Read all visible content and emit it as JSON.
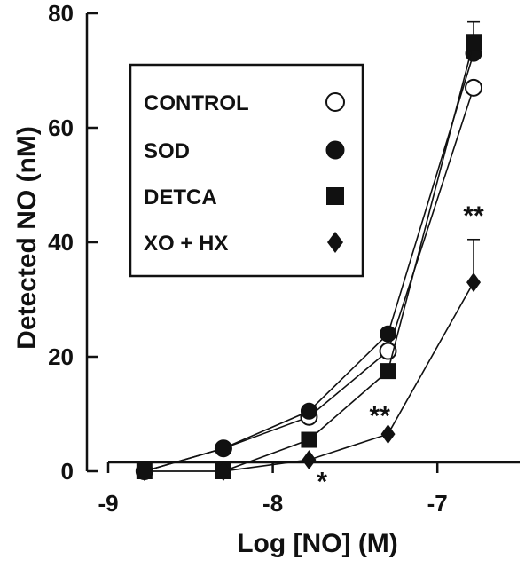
{
  "chart_data": {
    "type": "line",
    "xlabel": "Log [NO] (M)",
    "ylabel": "Detected NO (nM)",
    "xlim": [
      -9,
      -6.5
    ],
    "ylim": [
      0,
      80
    ],
    "x_ticks": [
      -9,
      -8,
      -7
    ],
    "x_tick_labels": [
      "-9",
      "-8",
      "-7"
    ],
    "y_ticks": [
      0,
      20,
      40,
      60,
      80
    ],
    "y_tick_labels": [
      "0",
      "20",
      "40",
      "60",
      "80"
    ],
    "grid": false,
    "legend_position": "upper-left",
    "series": [
      {
        "name": "CONTROL",
        "marker": "open-circle",
        "x": [
          -8.78,
          -8.3,
          -7.78,
          -7.3,
          -6.78
        ],
        "y": [
          0,
          4,
          9.5,
          21,
          67
        ],
        "err_up": [
          0,
          0,
          0,
          0,
          0
        ]
      },
      {
        "name": "SOD",
        "marker": "filled-circle",
        "x": [
          -8.78,
          -8.3,
          -7.78,
          -7.3,
          -6.78
        ],
        "y": [
          0,
          4,
          10.5,
          24,
          73
        ],
        "err_up": [
          0,
          0,
          0,
          0,
          0
        ]
      },
      {
        "name": "DETCA",
        "marker": "filled-square",
        "x": [
          -8.78,
          -8.3,
          -7.78,
          -7.3,
          -6.78
        ],
        "y": [
          0,
          0,
          5.5,
          17.5,
          75
        ],
        "err_up": [
          0,
          0,
          0,
          0,
          3.5
        ]
      },
      {
        "name": "XO + HX",
        "marker": "filled-diamond",
        "x": [
          -8.78,
          -8.3,
          -7.78,
          -7.3,
          -6.78
        ],
        "y": [
          0,
          0,
          2,
          6.5,
          33
        ],
        "err_up": [
          0,
          0,
          0,
          0,
          7.5
        ]
      }
    ],
    "annotations": [
      {
        "text": "*",
        "x": -7.7,
        "y": -1.5
      },
      {
        "text": "**",
        "x": -7.35,
        "y": 10
      },
      {
        "text": "**",
        "x": -6.78,
        "y": 45
      }
    ]
  }
}
